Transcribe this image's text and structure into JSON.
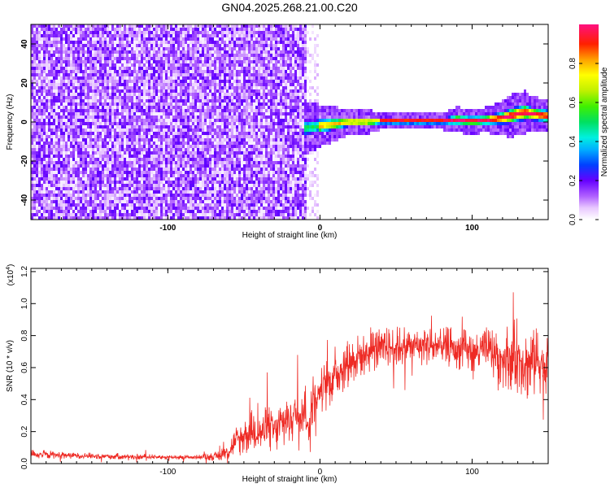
{
  "title": "GN04.2025.268.21.00.C20",
  "colors": {
    "snr_line": "#ee2a24",
    "axis": "#000000",
    "cbar_top": "#ff1080",
    "cbar_bottom": "#ffffff"
  },
  "chart_data": [
    {
      "type": "heatmap",
      "name": "spectrogram",
      "xlabel": "Height of straight line (km)",
      "ylabel": "Frequency (Hz)",
      "xlim": [
        -190,
        150
      ],
      "ylim": [
        -50,
        50
      ],
      "xticks": [
        -100,
        0,
        100
      ],
      "xtick_labels": [
        "-100",
        "0",
        "100"
      ],
      "yticks": [
        -40,
        -20,
        0,
        20,
        40
      ],
      "ytick_labels": [
        "-40",
        "-20",
        "0",
        "20",
        "40"
      ],
      "noise_region_km": [
        -190,
        -8
      ],
      "ridge": {
        "description_units": "frequency (Hz) vs height (km)",
        "x": [
          -8,
          0,
          10,
          20,
          30,
          40,
          50,
          60,
          70,
          80,
          90,
          100,
          110,
          120,
          125,
          130,
          135,
          140,
          150
        ],
        "center_hz": [
          -3,
          -2,
          -1,
          0,
          0,
          0.5,
          0.5,
          0.5,
          0.5,
          0.5,
          1,
          0.5,
          1,
          2,
          3,
          4,
          5,
          4,
          3
        ],
        "halfwidth_hz": [
          6,
          5,
          4,
          3,
          3,
          2,
          2,
          2,
          2,
          2,
          3,
          3,
          3,
          4,
          5,
          5,
          5,
          4,
          4
        ]
      },
      "colorbar": {
        "label": "Normalized spectral amplitude",
        "range": [
          0,
          1
        ],
        "ticks": [
          0.0,
          0.2,
          0.4,
          0.6,
          0.8
        ],
        "tick_labels": [
          "0.0",
          "0.2",
          "0.4",
          "0.6",
          "0.8"
        ]
      }
    },
    {
      "type": "line",
      "name": "snr",
      "xlabel": "Height of straight line (km)",
      "ylabel": "SNR (10 * v/v)",
      "y_multiplier_base": "(x10",
      "y_multiplier_exp": "4",
      "y_multiplier_close": ")",
      "xlim": [
        -190,
        150
      ],
      "ylim": [
        0,
        1.22
      ],
      "xticks": [
        -100,
        0,
        100
      ],
      "xtick_labels": [
        "-100",
        "0",
        "100"
      ],
      "yticks": [
        0.0,
        0.2,
        0.4,
        0.6,
        0.8,
        1.0,
        1.2
      ],
      "ytick_labels": [
        "0.0",
        "0.2",
        "0.4",
        "0.6",
        "0.8",
        "1.0",
        "1.2"
      ],
      "envelope": {
        "x": [
          -190,
          -160,
          -130,
          -100,
          -80,
          -68,
          -60,
          -55,
          -50,
          -45,
          -40,
          -35,
          -30,
          -25,
          -20,
          -15,
          -10,
          -8,
          -5,
          0,
          5,
          10,
          15,
          20,
          25,
          30,
          40,
          50,
          60,
          70,
          80,
          90,
          100,
          110,
          115,
          120,
          125,
          130,
          135,
          140,
          145,
          150
        ],
        "mean": [
          0.06,
          0.05,
          0.045,
          0.04,
          0.04,
          0.045,
          0.08,
          0.14,
          0.18,
          0.2,
          0.2,
          0.21,
          0.22,
          0.24,
          0.28,
          0.32,
          0.36,
          0.2,
          0.4,
          0.45,
          0.5,
          0.57,
          0.6,
          0.64,
          0.67,
          0.69,
          0.72,
          0.73,
          0.74,
          0.74,
          0.73,
          0.72,
          0.7,
          0.7,
          0.68,
          0.67,
          0.68,
          0.68,
          0.64,
          0.62,
          0.65,
          0.62
        ],
        "spread": [
          0.03,
          0.02,
          0.02,
          0.015,
          0.015,
          0.03,
          0.06,
          0.1,
          0.13,
          0.14,
          0.15,
          0.15,
          0.16,
          0.17,
          0.18,
          0.18,
          0.18,
          0.1,
          0.16,
          0.16,
          0.17,
          0.17,
          0.16,
          0.15,
          0.14,
          0.14,
          0.13,
          0.13,
          0.13,
          0.13,
          0.13,
          0.13,
          0.14,
          0.16,
          0.18,
          0.2,
          0.22,
          0.24,
          0.26,
          0.22,
          0.22,
          0.22
        ]
      }
    }
  ]
}
